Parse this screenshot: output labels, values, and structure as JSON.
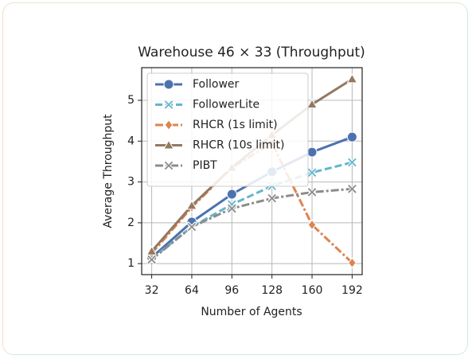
{
  "chart_data": {
    "type": "line",
    "title": "Warehouse 46 × 33 (Throughput)",
    "x_label": "Number of Agents",
    "y_label": "Average Throughput",
    "x": [
      32,
      64,
      96,
      128,
      160,
      192
    ],
    "series": [
      {
        "name": "Follower",
        "color": "#4c72b0",
        "marker": "circle",
        "linestyle": "solid",
        "values": [
          1.15,
          2.02,
          2.7,
          3.25,
          3.73,
          4.1
        ]
      },
      {
        "name": "FollowerLite",
        "color": "#64b5cd",
        "marker": "x",
        "linestyle": "dashed",
        "values": [
          1.12,
          1.9,
          2.45,
          2.9,
          3.23,
          3.48
        ]
      },
      {
        "name": "RHCR (1s limit)",
        "color": "#dd8452",
        "marker": "diamond",
        "linestyle": "dashdot",
        "values": [
          1.25,
          2.38,
          3.35,
          3.95,
          1.95,
          1.02
        ]
      },
      {
        "name": "RHCR (10s limit)",
        "color": "#937860",
        "marker": "triangle",
        "linestyle": "solid",
        "values": [
          1.3,
          2.42,
          3.35,
          4.15,
          4.9,
          5.52
        ]
      },
      {
        "name": "PIBT",
        "color": "#8c8c8c",
        "marker": "x",
        "linestyle": "dashdot",
        "values": [
          1.1,
          1.9,
          2.35,
          2.6,
          2.75,
          2.83
        ]
      }
    ],
    "xlim": [
      24,
      200
    ],
    "ylim": [
      0.73,
      5.8
    ],
    "xticks": [
      32,
      64,
      96,
      128,
      160,
      192
    ],
    "yticks": [
      1,
      2,
      3,
      4,
      5
    ],
    "grid": true,
    "legend": "upper left"
  }
}
